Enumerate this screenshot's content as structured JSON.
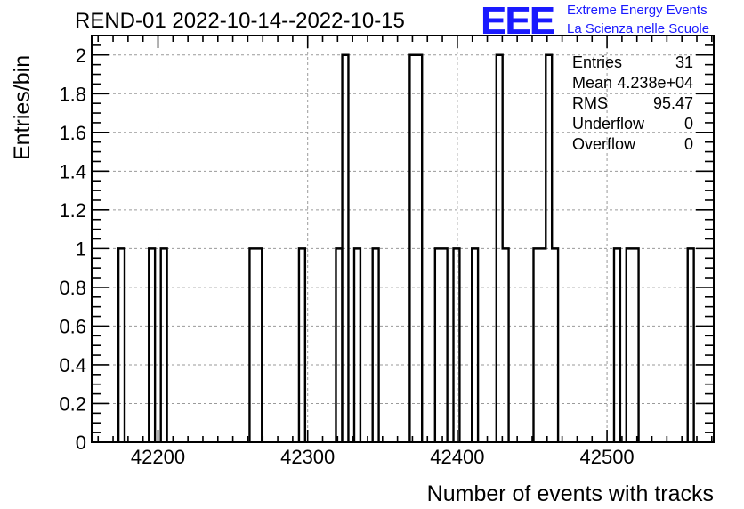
{
  "header": {
    "title": "REND-01 2022-10-14--2022-10-15"
  },
  "logo": {
    "mark": "EEE",
    "line1": "Extreme Energy Events",
    "line2": "La Scienza nelle Scuole"
  },
  "stats": [
    {
      "label": "Entries",
      "value": "31"
    },
    {
      "label": "Mean",
      "value": "4.238e+04"
    },
    {
      "label": "RMS",
      "value": "95.47"
    },
    {
      "label": "Underflow",
      "value": "0"
    },
    {
      "label": "Overflow",
      "value": "0"
    }
  ],
  "colors": {
    "line": "#000000",
    "grid": "#9a9a9a",
    "brand": "#1a1aff"
  },
  "chart_data": {
    "type": "bar",
    "histogram": true,
    "title": "REND-01 2022-10-14--2022-10-15",
    "xlabel": "Number of events with tracks",
    "ylabel": "Entries/bin",
    "xlim": [
      42155.7,
      42571.3
    ],
    "ylim": [
      0,
      2.1
    ],
    "bin_width": 4.1,
    "xticks": [
      42200,
      42300,
      42400,
      42500
    ],
    "xtick_labels": [
      "42200",
      "42300",
      "42400",
      "42500"
    ],
    "yticks": [
      0,
      0.2,
      0.4,
      0.6,
      0.8,
      1,
      1.2,
      1.4,
      1.6,
      1.8,
      2
    ],
    "ytick_labels": [
      "0",
      "0.2",
      "0.4",
      "0.6",
      "0.8",
      "1",
      "1.2",
      "1.4",
      "1.6",
      "1.8",
      "2"
    ],
    "grid": true,
    "bins": [
      {
        "start": 42173.6,
        "count": 1
      },
      {
        "start": 42193.9,
        "count": 1
      },
      {
        "start": 42201.9,
        "count": 1
      },
      {
        "start": 42261.2,
        "count": 1
      },
      {
        "start": 42265.3,
        "count": 1
      },
      {
        "start": 42294.2,
        "count": 1
      },
      {
        "start": 42318.9,
        "count": 1
      },
      {
        "start": 42323.1,
        "count": 2
      },
      {
        "start": 42331.1,
        "count": 1
      },
      {
        "start": 42343.4,
        "count": 1
      },
      {
        "start": 42368.2,
        "count": 2
      },
      {
        "start": 42372.3,
        "count": 2
      },
      {
        "start": 42385.1,
        "count": 1
      },
      {
        "start": 42389.2,
        "count": 1
      },
      {
        "start": 42397.4,
        "count": 1
      },
      {
        "start": 42409.7,
        "count": 1
      },
      {
        "start": 42426.1,
        "count": 2
      },
      {
        "start": 42430.2,
        "count": 1
      },
      {
        "start": 42450.9,
        "count": 1
      },
      {
        "start": 42455.0,
        "count": 1
      },
      {
        "start": 42459.1,
        "count": 2
      },
      {
        "start": 42463.2,
        "count": 1
      },
      {
        "start": 42504.7,
        "count": 1
      },
      {
        "start": 42512.9,
        "count": 1
      },
      {
        "start": 42517.0,
        "count": 1
      },
      {
        "start": 42553.9,
        "count": 1
      }
    ]
  }
}
